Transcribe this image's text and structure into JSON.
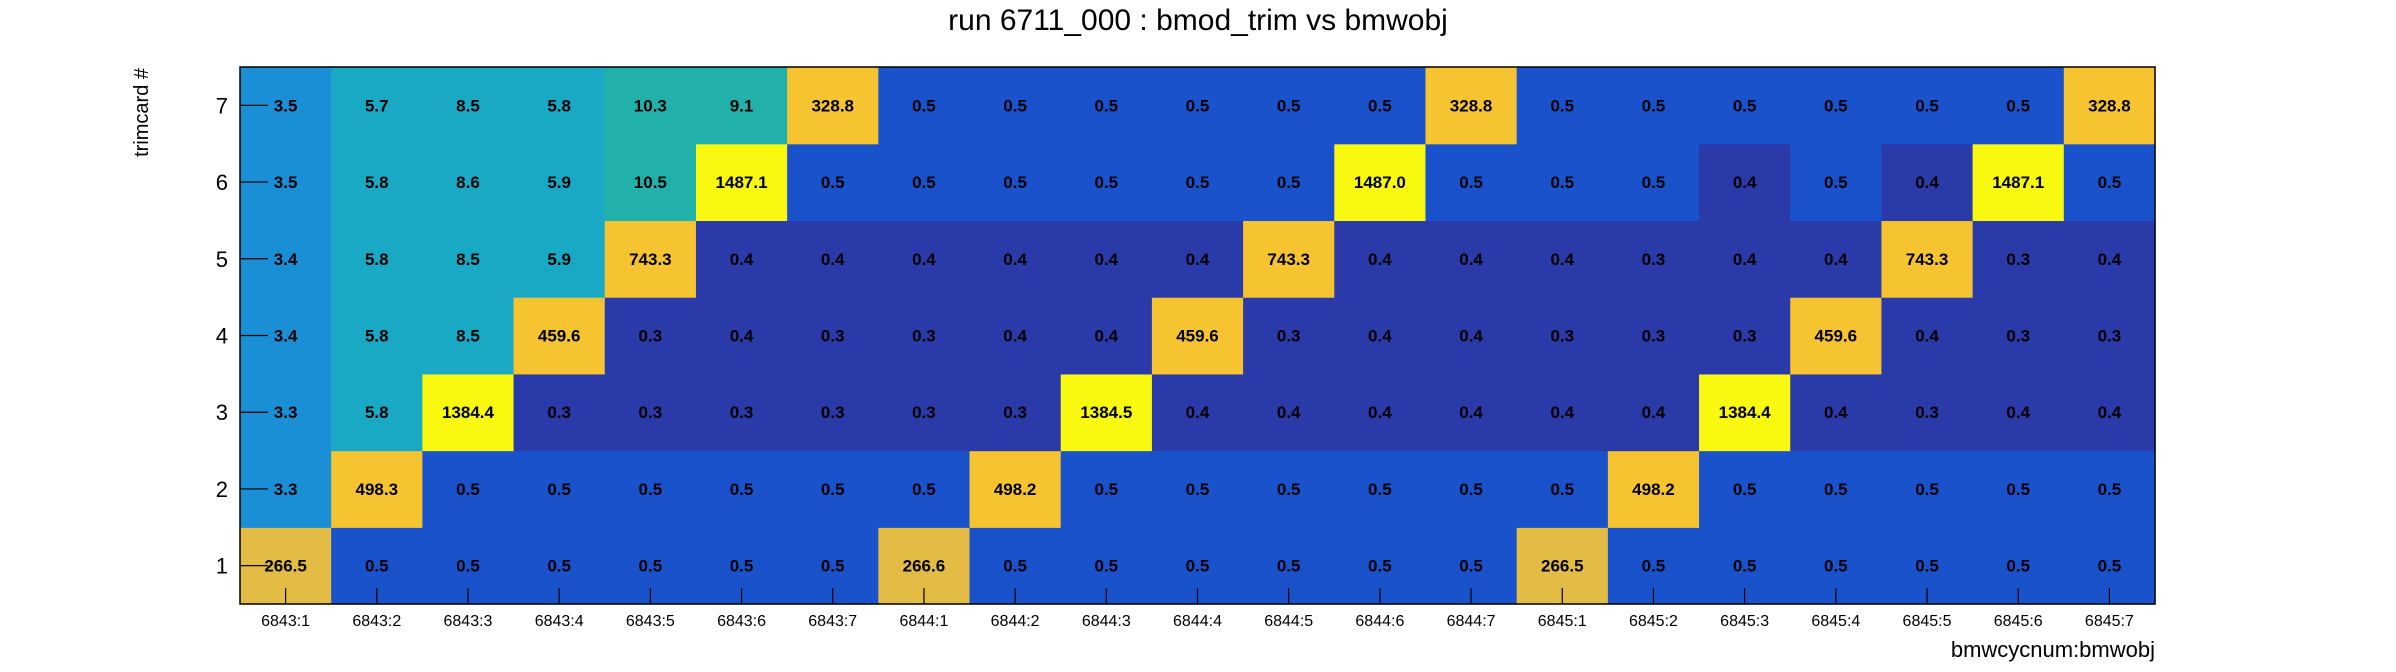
{
  "chart_data": {
    "type": "heatmap",
    "title": "run 6711_000 : bmod_trim vs bmwobj",
    "xlabel": "bmwcycnum:bmwobj",
    "ylabel": "trimcard #",
    "x_categories": [
      "6843:1",
      "6843:2",
      "6843:3",
      "6843:4",
      "6843:5",
      "6843:6",
      "6843:7",
      "6844:1",
      "6844:2",
      "6844:3",
      "6844:4",
      "6844:5",
      "6844:6",
      "6844:7",
      "6845:1",
      "6845:2",
      "6845:3",
      "6845:4",
      "6845:5",
      "6845:6",
      "6845:7"
    ],
    "y_categories": [
      "1",
      "2",
      "3",
      "4",
      "5",
      "6",
      "7"
    ],
    "values": [
      [
        "266.5",
        "0.5",
        "0.5",
        "0.5",
        "0.5",
        "0.5",
        "0.5",
        "266.6",
        "0.5",
        "0.5",
        "0.5",
        "0.5",
        "0.5",
        "0.5",
        "266.5",
        "0.5",
        "0.5",
        "0.5",
        "0.5",
        "0.5",
        "0.5"
      ],
      [
        "3.3",
        "498.3",
        "0.5",
        "0.5",
        "0.5",
        "0.5",
        "0.5",
        "0.5",
        "498.2",
        "0.5",
        "0.5",
        "0.5",
        "0.5",
        "0.5",
        "0.5",
        "498.2",
        "0.5",
        "0.5",
        "0.5",
        "0.5",
        "0.5"
      ],
      [
        "3.3",
        "5.8",
        "1384.4",
        "0.3",
        "0.3",
        "0.3",
        "0.3",
        "0.3",
        "0.3",
        "1384.5",
        "0.4",
        "0.4",
        "0.4",
        "0.4",
        "0.4",
        "0.4",
        "1384.4",
        "0.4",
        "0.3",
        "0.4",
        "0.4"
      ],
      [
        "3.4",
        "5.8",
        "8.5",
        "459.6",
        "0.3",
        "0.4",
        "0.3",
        "0.3",
        "0.4",
        "0.4",
        "459.6",
        "0.3",
        "0.4",
        "0.4",
        "0.3",
        "0.3",
        "0.3",
        "459.6",
        "0.4",
        "0.3",
        "0.3"
      ],
      [
        "3.4",
        "5.8",
        "8.5",
        "5.9",
        "743.3",
        "0.4",
        "0.4",
        "0.4",
        "0.4",
        "0.4",
        "0.4",
        "743.3",
        "0.4",
        "0.4",
        "0.4",
        "0.3",
        "0.4",
        "0.4",
        "743.3",
        "0.3",
        "0.4"
      ],
      [
        "3.5",
        "5.8",
        "8.6",
        "5.9",
        "10.5",
        "1487.1",
        "0.5",
        "0.5",
        "0.5",
        "0.5",
        "0.5",
        "0.5",
        "1487.0",
        "0.5",
        "0.5",
        "0.5",
        "0.4",
        "0.5",
        "0.4",
        "1487.1",
        "0.5"
      ],
      [
        "3.5",
        "5.7",
        "8.5",
        "5.8",
        "10.3",
        "9.1",
        "328.8",
        "0.5",
        "0.5",
        "0.5",
        "0.5",
        "0.5",
        "0.5",
        "328.8",
        "0.5",
        "0.5",
        "0.5",
        "0.5",
        "0.5",
        "0.5",
        "328.8"
      ]
    ],
    "colors": {
      "low": "#2a3aa8",
      "mid_low": "#1a52cc",
      "col1": "#1a8fd6",
      "cyan": "#19a9c5",
      "teal": "#22b0aa",
      "gold": "#f5c430",
      "amber": "#e2bc44",
      "yellow": "#f8f810"
    },
    "grid": false
  }
}
